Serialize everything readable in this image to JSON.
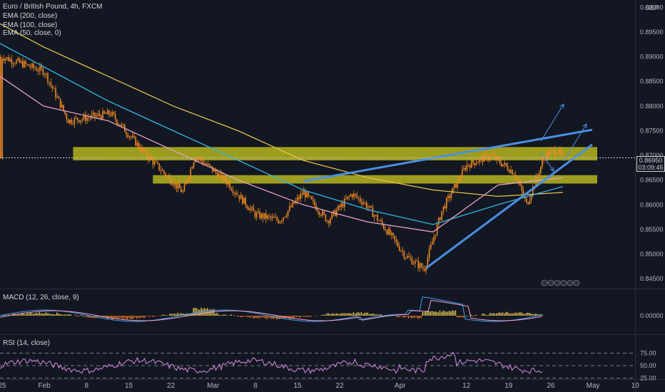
{
  "legend": {
    "symbol": "Euro / British Pound, 4h, FXCM",
    "ema200": "EMA (200, close)",
    "ema100": "EMA (100, close)",
    "ema50": "EMA (50, close, 0)",
    "macd": "MACD (12, 26, close, 9)",
    "rsi": "RSI (14, close)"
  },
  "currency": "GBP",
  "last_price": "0.86950",
  "countdown": "03:09:45",
  "colors": {
    "background": "#131722",
    "candle": "#f08a24",
    "ema200": "#e6c04a",
    "ema100": "#31b5e6",
    "ema50": "#e7a1c3",
    "zone": "#b5b51e",
    "trendline": "#4a90e2",
    "rsi": "#d58be0",
    "macd_line": "#3aa0f0",
    "signal_line": "#f0a0d0"
  },
  "chart_data": {
    "type": "line",
    "price_axis": {
      "ticks": [
        "0.90000",
        "0.89500",
        "0.89000",
        "0.88500",
        "0.88000",
        "0.87500",
        "0.87000",
        "0.86500",
        "0.86000",
        "0.85500",
        "0.85000",
        "0.84500"
      ],
      "range": [
        0.843,
        0.9015
      ]
    },
    "time_axis": {
      "ticks": [
        "25",
        "Feb",
        "8",
        "15",
        "22",
        "Mar",
        "8",
        "15",
        "22",
        "Apr",
        "12",
        "19",
        "26",
        "May",
        "10"
      ]
    },
    "price_path": [
      {
        "t": "Jan 25",
        "v": 0.89
      },
      {
        "t": "Feb 1",
        "v": 0.887
      },
      {
        "t": "Feb 5",
        "v": 0.877
      },
      {
        "t": "Feb 12",
        "v": 0.8785
      },
      {
        "t": "Feb 18",
        "v": 0.87
      },
      {
        "t": "Feb 24",
        "v": 0.8625
      },
      {
        "t": "Feb 26",
        "v": 0.87
      },
      {
        "t": "Mar 3",
        "v": 0.865
      },
      {
        "t": "Mar 8",
        "v": 0.858
      },
      {
        "t": "Mar 12",
        "v": 0.8568
      },
      {
        "t": "Mar 16",
        "v": 0.8625
      },
      {
        "t": "Mar 20",
        "v": 0.8568
      },
      {
        "t": "Mar 24",
        "v": 0.8622
      },
      {
        "t": "Mar 26",
        "v": 0.8605
      },
      {
        "t": "Mar 30",
        "v": 0.8545
      },
      {
        "t": "Apr 2",
        "v": 0.8495
      },
      {
        "t": "Apr 5",
        "v": 0.847
      },
      {
        "t": "Apr 8",
        "v": 0.859
      },
      {
        "t": "Apr 12",
        "v": 0.868
      },
      {
        "t": "Apr 16",
        "v": 0.87
      },
      {
        "t": "Apr 20",
        "v": 0.8665
      },
      {
        "t": "Apr 22",
        "v": 0.86
      },
      {
        "t": "Apr 25",
        "v": 0.87
      },
      {
        "t": "Apr 27",
        "v": 0.8712
      },
      {
        "t": "Apr 28",
        "v": 0.8695
      }
    ],
    "series": [
      {
        "name": "EMA (200, close)",
        "values": [
          0.899,
          0.892,
          0.886,
          0.88,
          0.875,
          0.869,
          0.8655,
          0.863,
          0.8617,
          0.8625
        ]
      },
      {
        "name": "EMA (100, close)",
        "values": [
          0.895,
          0.888,
          0.881,
          0.875,
          0.869,
          0.863,
          0.859,
          0.856,
          0.86,
          0.8637
        ]
      },
      {
        "name": "EMA (50, close, 0)",
        "values": [
          0.889,
          0.88,
          0.877,
          0.871,
          0.865,
          0.86,
          0.8565,
          0.8545,
          0.864,
          0.8655
        ]
      }
    ],
    "zones": [
      {
        "from": 0.869,
        "to": 0.8717
      },
      {
        "from": 0.8643,
        "to": 0.866
      }
    ],
    "macd": {
      "zero_label": "0.00000"
    },
    "rsi": {
      "ticks": [
        "75.00",
        "50.00",
        "25.00"
      ],
      "range": [
        0,
        100
      ]
    }
  }
}
